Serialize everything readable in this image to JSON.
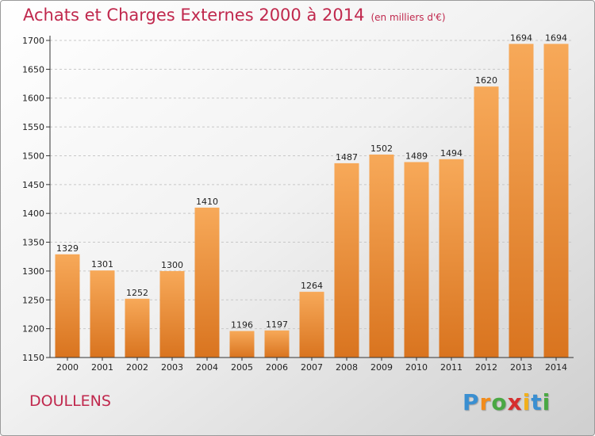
{
  "header": {
    "title": "Achats et Charges Externes 2000 à 2014",
    "subtitle": "(en milliers d'€)"
  },
  "footer": {
    "city": "DOULLENS",
    "logo_letters": [
      "P",
      "r",
      "o",
      "x",
      "i",
      "t",
      "i"
    ],
    "logo_colors": [
      "#3a8fd1",
      "#f28c1b",
      "#4aa844",
      "#d62f2f",
      "#f2b01b",
      "#3a8fd1",
      "#4aa844"
    ]
  },
  "colors": {
    "bar_light": "#f7a959",
    "bar_dark": "#d9741f",
    "title": "#c0284d",
    "grid": "#c8c8c8"
  },
  "chart_data": {
    "type": "bar",
    "title": "Achats et Charges Externes 2000 à 2014",
    "subtitle": "(en milliers d'€)",
    "xlabel": "",
    "ylabel": "",
    "categories": [
      "2000",
      "2001",
      "2002",
      "2003",
      "2004",
      "2005",
      "2006",
      "2007",
      "2008",
      "2009",
      "2010",
      "2011",
      "2012",
      "2013",
      "2014"
    ],
    "values": [
      1329,
      1301,
      1252,
      1300,
      1410,
      1196,
      1197,
      1264,
      1487,
      1502,
      1489,
      1494,
      1620,
      1694,
      1694
    ],
    "ylim": [
      1150,
      1700
    ],
    "yticks": [
      1150,
      1200,
      1250,
      1300,
      1350,
      1400,
      1450,
      1500,
      1550,
      1600,
      1650,
      1700
    ],
    "grid": "horizontal dashed",
    "legend": "none"
  }
}
